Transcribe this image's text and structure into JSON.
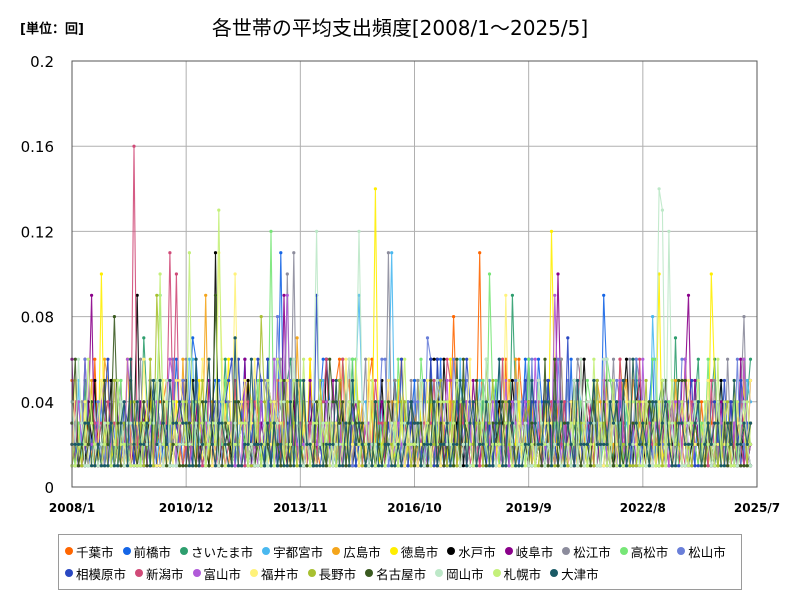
{
  "chart_data": {
    "type": "line",
    "title": "各世帯の平均支出頻度[2008/1～2025/5]",
    "unit_label": "[単位：回]",
    "xlabel": "",
    "ylabel": "",
    "x_start": "2008/1",
    "x_end": "2025/5",
    "xlim": [
      "2008/1",
      "2025/7"
    ],
    "x_ticks": [
      "2008/1",
      "2010/12",
      "2013/11",
      "2016/10",
      "2019/9",
      "2022/8",
      "2025/7"
    ],
    "ylim": [
      0,
      0.2
    ],
    "y_ticks": [
      "0",
      "0.04",
      "0.08",
      "0.12",
      "0.16",
      "0.2"
    ],
    "grid": true,
    "legend_position": "bottom",
    "series": [
      {
        "name": "千葉市",
        "color": "#ff6600",
        "peaks": [
          [
            "2018/6",
            0.11
          ],
          [
            "2017/10",
            0.08
          ],
          [
            "2025/3",
            0.06
          ]
        ]
      },
      {
        "name": "前橋市",
        "color": "#1565e6",
        "peaks": [
          [
            "2013/5",
            0.11
          ],
          [
            "2011/2",
            0.07
          ],
          [
            "2021/8",
            0.09
          ]
        ]
      },
      {
        "name": "さいたま市",
        "color": "#2e9e6e",
        "peaks": [
          [
            "2009/11",
            0.07
          ],
          [
            "2019/4",
            0.09
          ],
          [
            "2023/6",
            0.07
          ]
        ]
      },
      {
        "name": "宇都宮市",
        "color": "#4ab8ef",
        "peaks": [
          [
            "2016/3",
            0.11
          ],
          [
            "2015/5",
            0.09
          ],
          [
            "2022/11",
            0.08
          ]
        ]
      },
      {
        "name": "広島市",
        "color": "#f4a51c",
        "peaks": [
          [
            "2011/6",
            0.09
          ],
          [
            "2013/10",
            0.07
          ],
          [
            "2022/1",
            0.06
          ]
        ]
      },
      {
        "name": "徳島市",
        "color": "#ffee00",
        "peaks": [
          [
            "2015/10",
            0.14
          ],
          [
            "2020/4",
            0.12
          ],
          [
            "2023/1",
            0.1
          ],
          [
            "2008/10",
            0.1
          ],
          [
            "2024/5",
            0.1
          ]
        ]
      },
      {
        "name": "水戸市",
        "color": "#000000",
        "peaks": [
          [
            "2011/9",
            0.11
          ],
          [
            "2009/9",
            0.09
          ],
          [
            "2014/7",
            0.06
          ]
        ]
      },
      {
        "name": "岐阜市",
        "color": "#8a008a",
        "peaks": [
          [
            "2013/6",
            0.09
          ],
          [
            "2008/7",
            0.09
          ],
          [
            "2020/6",
            0.1
          ],
          [
            "2023/10",
            0.09
          ]
        ]
      },
      {
        "name": "松江市",
        "color": "#8c8c9c",
        "peaks": [
          [
            "2013/9",
            0.11
          ],
          [
            "2016/2",
            0.11
          ],
          [
            "2013/7",
            0.1
          ],
          [
            "2025/3",
            0.08
          ]
        ]
      },
      {
        "name": "高松市",
        "color": "#77e677",
        "peaks": [
          [
            "2013/2",
            0.12
          ],
          [
            "2010/4",
            0.09
          ],
          [
            "2018/9",
            0.1
          ]
        ]
      },
      {
        "name": "松山市",
        "color": "#6a7fd9",
        "peaks": [
          [
            "2013/4",
            0.08
          ],
          [
            "2017/2",
            0.07
          ]
        ]
      },
      {
        "name": "相模原市",
        "color": "#2a48c2",
        "peaks": [
          [
            "2014/4",
            0.09
          ],
          [
            "2020/9",
            0.07
          ]
        ]
      },
      {
        "name": "新潟市",
        "color": "#d04a78",
        "peaks": [
          [
            "2009/8",
            0.16
          ],
          [
            "2010/7",
            0.11
          ],
          [
            "2010/9",
            0.1
          ]
        ]
      },
      {
        "name": "富山市",
        "color": "#b05ad8",
        "peaks": [
          [
            "2013/7",
            0.09
          ],
          [
            "2020/5",
            0.09
          ]
        ]
      },
      {
        "name": "福井市",
        "color": "#fff27a",
        "peaks": [
          [
            "2011/10",
            0.11
          ],
          [
            "2012/3",
            0.1
          ],
          [
            "2019/2",
            0.09
          ]
        ]
      },
      {
        "name": "長野市",
        "color": "#a8c030",
        "peaks": [
          [
            "2010/3",
            0.09
          ],
          [
            "2012/11",
            0.08
          ]
        ]
      },
      {
        "name": "名古屋市",
        "color": "#3a5a20",
        "peaks": [
          [
            "2009/2",
            0.08
          ],
          [
            "2011/9",
            0.09
          ]
        ]
      },
      {
        "name": "岡山市",
        "color": "#bde8c8",
        "peaks": [
          [
            "2023/1",
            0.14
          ],
          [
            "2023/2",
            0.13
          ],
          [
            "2023/4",
            0.12
          ],
          [
            "2015/5",
            0.12
          ],
          [
            "2014/4",
            0.12
          ]
        ]
      },
      {
        "name": "札幌市",
        "color": "#c4f07a",
        "peaks": [
          [
            "2011/10",
            0.13
          ],
          [
            "2011/1",
            0.11
          ],
          [
            "2010/4",
            0.1
          ]
        ]
      },
      {
        "name": "大津市",
        "color": "#1a5a66",
        "peaks": [
          [
            "2012/3",
            0.07
          ],
          [
            "2024/1",
            0.04
          ]
        ]
      }
    ]
  }
}
